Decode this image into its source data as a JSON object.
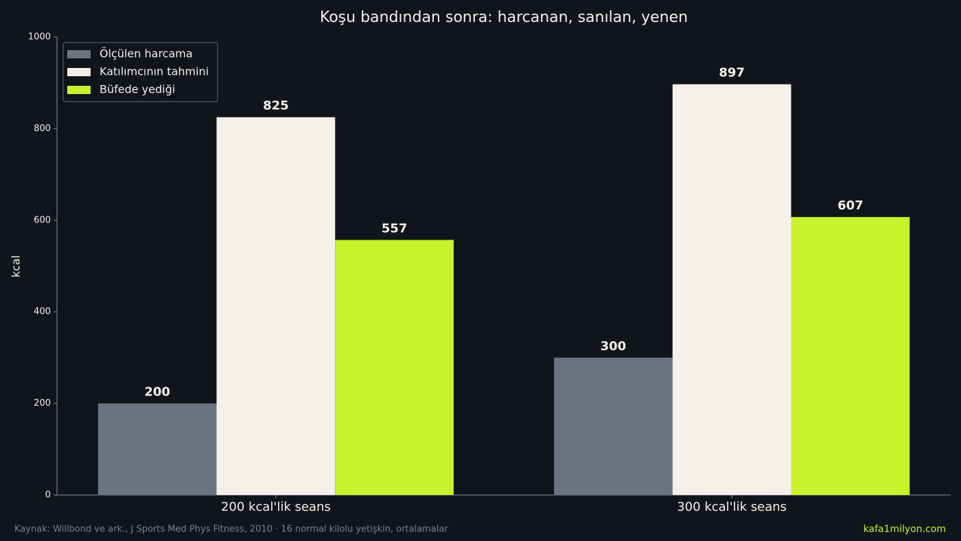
{
  "chart_data": {
    "type": "bar",
    "title": "Koşu bandından sonra: harcanan, sanılan, yenen",
    "ylabel": "kcal",
    "categories": [
      "200 kcal'lik seans",
      "300 kcal'lik seans"
    ],
    "series": [
      {
        "name": "Ölçülen harcama",
        "color": "#6b7280",
        "values": [
          200,
          300
        ]
      },
      {
        "name": "Katılımcının tahmini",
        "color": "#f5f1ea",
        "values": [
          825,
          897
        ]
      },
      {
        "name": "Büfede yediği",
        "color": "#c8f22c",
        "values": [
          557,
          607
        ]
      }
    ],
    "ylim": [
      0,
      1000
    ],
    "yticks": [
      0,
      200,
      400,
      600,
      800,
      1000
    ],
    "grid": false,
    "legend": "upper left",
    "footnote": "Kaynak: Willbond ve ark., J Sports Med Phys Fitness, 2010 · 16 normal kilolu yetişkin, ortalamalar",
    "credit": "kafa1milyon.com"
  }
}
